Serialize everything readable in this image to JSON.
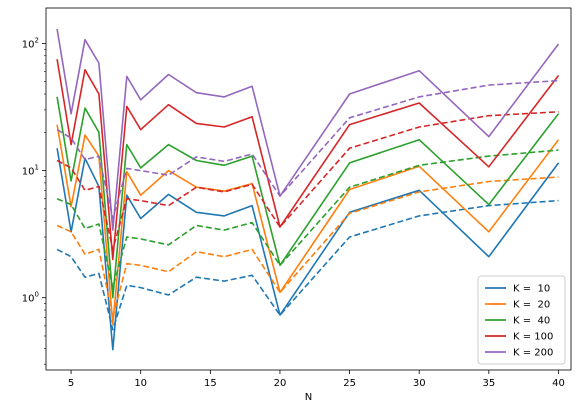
{
  "chart_data": {
    "type": "line",
    "xlabel": "N",
    "ylabel": "",
    "title": "",
    "yscale": "log",
    "xlim": [
      3.2,
      40.9
    ],
    "ylim": [
      0.27,
      190
    ],
    "xticks": [
      5,
      10,
      15,
      20,
      25,
      30,
      35,
      40
    ],
    "yticks": [
      {
        "value": 1,
        "base": "10",
        "exp": "0"
      },
      {
        "value": 10,
        "base": "10",
        "exp": "1"
      },
      {
        "value": 100,
        "base": "10",
        "exp": "2"
      }
    ],
    "grid": false,
    "legend_position": "lower-right",
    "x": [
      4,
      5,
      6,
      7,
      8,
      9,
      10,
      12,
      14,
      16,
      18,
      20,
      25,
      30,
      35,
      40
    ],
    "series": [
      {
        "name": "K =  10",
        "color": "#1f77b4",
        "solid": [
          15,
          3.3,
          12.5,
          7.5,
          0.39,
          6.4,
          4.2,
          6.5,
          4.7,
          4.4,
          5.3,
          0.73,
          4.7,
          7.0,
          2.1,
          11.5
        ],
        "dashed": [
          2.4,
          2.1,
          1.45,
          1.55,
          0.56,
          1.25,
          1.2,
          1.05,
          1.45,
          1.35,
          1.5,
          0.73,
          3.0,
          4.4,
          5.3,
          5.8
        ]
      },
      {
        "name": "K =  20",
        "color": "#ff7f0e",
        "solid": [
          23,
          5.2,
          19,
          13,
          0.62,
          9.8,
          6.4,
          10,
          7.4,
          6.9,
          7.9,
          1.1,
          7.1,
          10.8,
          3.3,
          17.5
        ],
        "dashed": [
          3.7,
          3.3,
          2.2,
          2.4,
          0.7,
          1.85,
          1.8,
          1.6,
          2.3,
          2.1,
          2.4,
          1.1,
          4.6,
          6.8,
          8.2,
          8.9
        ]
      },
      {
        "name": "K =  40",
        "color": "#2ca02c",
        "solid": [
          38,
          8.3,
          31,
          20,
          1.0,
          16,
          10.5,
          16,
          12,
          11,
          13,
          1.8,
          11.5,
          17.5,
          5.4,
          28
        ],
        "dashed": [
          6.0,
          5.4,
          3.5,
          3.8,
          1.2,
          3.0,
          2.9,
          2.6,
          3.7,
          3.4,
          3.9,
          1.8,
          7.4,
          11,
          13,
          14.5
        ]
      },
      {
        "name": "K = 100",
        "color": "#d62728",
        "solid": [
          75,
          16,
          62,
          40,
          2.0,
          32,
          21,
          33,
          23.5,
          22,
          26.5,
          3.6,
          23,
          34,
          10.7,
          56
        ],
        "dashed": [
          12,
          10.5,
          7.0,
          7.5,
          2.4,
          6.0,
          5.8,
          5.3,
          7.4,
          6.8,
          7.8,
          3.6,
          15,
          22,
          27,
          29
        ]
      },
      {
        "name": "K = 200",
        "color": "#9467bd",
        "solid": [
          130,
          28,
          107,
          70,
          3.4,
          55,
          36,
          57,
          41,
          38,
          46,
          6.3,
          40,
          61,
          18.5,
          99
        ],
        "dashed": [
          21,
          18,
          12.2,
          13,
          4.2,
          10.4,
          10,
          9.2,
          12.8,
          11.8,
          13.5,
          6.3,
          26,
          38,
          47,
          51
        ]
      }
    ]
  }
}
